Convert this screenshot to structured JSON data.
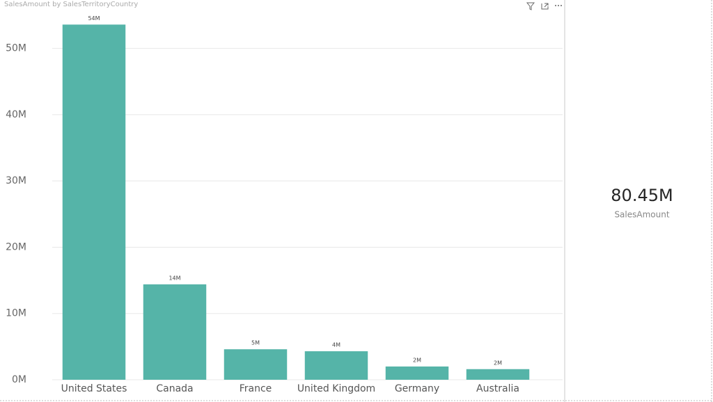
{
  "chart_data": {
    "type": "bar",
    "title": "SalesAmount by SalesTerritoryCountry",
    "categories": [
      "United States",
      "Canada",
      "France",
      "United Kingdom",
      "Germany",
      "Australia"
    ],
    "values": [
      53600000,
      14400000,
      4600000,
      4300000,
      2000000,
      1600000
    ],
    "value_labels": [
      "54M",
      "14M",
      "5M",
      "4M",
      "2M",
      "2M"
    ],
    "color": "#55b4a8",
    "ylim": [
      0,
      55000000
    ],
    "yticks": [
      {
        "value": 0,
        "label": "0M"
      },
      {
        "value": 10000000,
        "label": "10M"
      },
      {
        "value": 20000000,
        "label": "20M"
      },
      {
        "value": 30000000,
        "label": "30M"
      },
      {
        "value": 40000000,
        "label": "40M"
      },
      {
        "value": 50000000,
        "label": "50M"
      }
    ],
    "grid": true
  },
  "card": {
    "value": "80.45M",
    "label": "SalesAmount"
  }
}
